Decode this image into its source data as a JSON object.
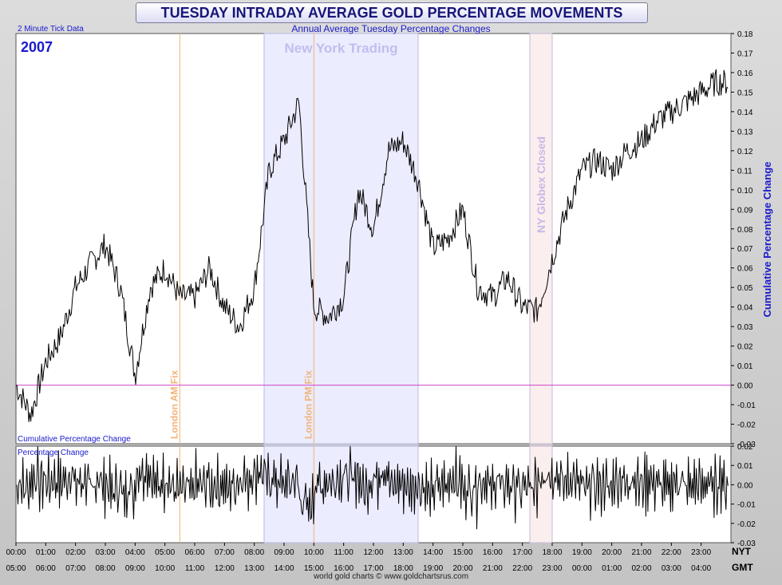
{
  "title": "TUESDAY INTRADAY AVERAGE GOLD PERCENTAGE MOVEMENTS",
  "subtitle": "Annual Average Tuesday Percentage Changes",
  "tick_note": "2 Minute Tick Data",
  "year_label": "2007",
  "footer": "world gold charts © www.goldchartsrus.com",
  "colors": {
    "line": "#000000",
    "zero_line": "#cc44cc",
    "ny_band": "#ececff",
    "globex_band": "#fbeeee",
    "fix_line": "#f0b478",
    "label_blue": "#1a1acc"
  },
  "chart_data": [
    {
      "type": "line",
      "title": "Cumulative Percentage Change",
      "ylabel": "Cumulative Percentage Change",
      "ylim": [
        -0.03,
        0.18
      ],
      "yticks": [
        "0.18",
        "0.17",
        "0.16",
        "0.15",
        "0.14",
        "0.13",
        "0.12",
        "0.11",
        "0.10",
        "0.09",
        "0.08",
        "0.07",
        "0.06",
        "0.05",
        "0.04",
        "0.03",
        "0.02",
        "0.01",
        "0.00",
        "-0.01",
        "-0.02",
        "-0.03"
      ],
      "x_hours_nyt": [
        0,
        0.5,
        1,
        1.5,
        2,
        2.5,
        3,
        3.5,
        4,
        4.5,
        5,
        5.5,
        6,
        6.5,
        7,
        7.5,
        8,
        8.5,
        9,
        9.5,
        10,
        10.5,
        11,
        11.5,
        12,
        12.5,
        13,
        13.5,
        14,
        14.5,
        15,
        15.5,
        16,
        16.5,
        17,
        17.5,
        18,
        18.5,
        19,
        19.5,
        20,
        20.5,
        21,
        21.5,
        22,
        22.5,
        23,
        23.5,
        23.9
      ],
      "y": [
        0.0,
        -0.015,
        0.012,
        0.025,
        0.05,
        0.062,
        0.072,
        0.05,
        0.005,
        0.05,
        0.06,
        0.045,
        0.045,
        0.06,
        0.04,
        0.03,
        0.05,
        0.11,
        0.125,
        0.145,
        0.04,
        0.035,
        0.045,
        0.1,
        0.08,
        0.12,
        0.125,
        0.105,
        0.07,
        0.075,
        0.09,
        0.05,
        0.045,
        0.055,
        0.04,
        0.038,
        0.065,
        0.09,
        0.11,
        0.115,
        0.11,
        0.12,
        0.125,
        0.135,
        0.14,
        0.145,
        0.15,
        0.155,
        0.155
      ]
    },
    {
      "type": "line",
      "title": "Percentage Change",
      "ylim": [
        -0.03,
        0.02
      ],
      "yticks": [
        "0.02",
        "0.01",
        "0.00",
        "-0.01",
        "-0.02",
        "-0.03"
      ]
    }
  ],
  "x_axis": {
    "nyt": [
      "00:00",
      "01:00",
      "02:00",
      "03:00",
      "04:00",
      "05:00",
      "06:00",
      "07:00",
      "08:00",
      "09:00",
      "10:00",
      "11:00",
      "12:00",
      "13:00",
      "14:00",
      "15:00",
      "16:00",
      "17:00",
      "18:00",
      "19:00",
      "20:00",
      "21:00",
      "22:00",
      "23:00"
    ],
    "gmt": [
      "05:00",
      "06:00",
      "07:00",
      "08:00",
      "09:00",
      "10:00",
      "11:00",
      "12:00",
      "13:00",
      "14:00",
      "15:00",
      "16:00",
      "17:00",
      "18:00",
      "19:00",
      "20:00",
      "21:00",
      "22:00",
      "23:00",
      "00:00",
      "01:00",
      "02:00",
      "03:00",
      "04:00"
    ],
    "nyt_label": "NYT",
    "gmt_label": "GMT"
  },
  "annotations": {
    "new_york": {
      "label": "New York Trading",
      "start_h": 8.33,
      "end_h": 13.5
    },
    "london_am": {
      "label": "London AM Fix",
      "h": 5.5
    },
    "london_pm": {
      "label": "London PM Fix",
      "h": 10.0
    },
    "globex": {
      "label": "NY Globex Closed",
      "start_h": 17.25,
      "end_h": 18.0
    }
  }
}
